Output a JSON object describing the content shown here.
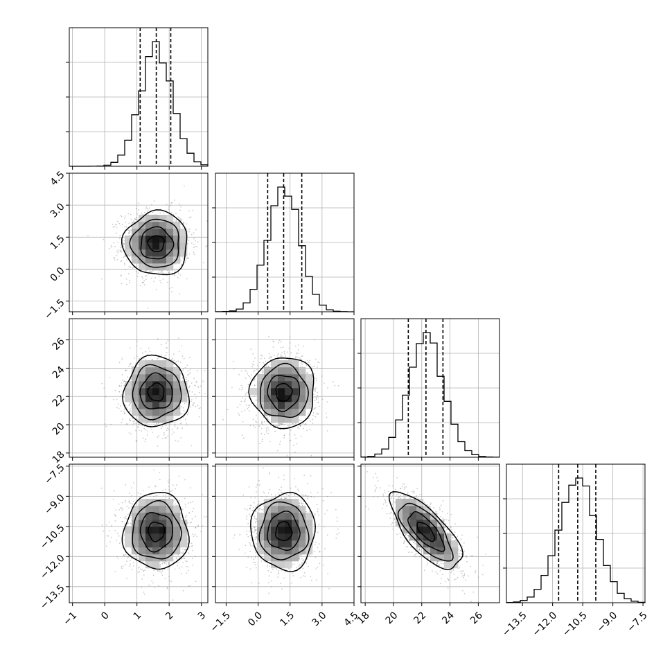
{
  "chart_data": {
    "type": "corner",
    "parameters": [
      {
        "range": [
          -1.1,
          3.2
        ],
        "ticks": [
          -1,
          0,
          1,
          2,
          3
        ],
        "tick_labels": [
          "−1",
          "0",
          "1",
          "2",
          "3"
        ],
        "mean": 1.6,
        "std": 0.5,
        "quantiles": [
          1.1,
          1.6,
          2.05
        ]
      },
      {
        "range": [
          -2.0,
          4.5
        ],
        "ticks": [
          -1.5,
          0.0,
          1.5,
          3.0,
          4.5
        ],
        "tick_labels": [
          "−1.5",
          "0.0",
          "1.5",
          "3.0",
          "4.5"
        ],
        "mean": 1.2,
        "std": 0.75,
        "quantiles": [
          0.45,
          1.2,
          2.05
        ]
      },
      {
        "range": [
          17.7,
          27.5
        ],
        "ticks": [
          18,
          20,
          22,
          24,
          26
        ],
        "tick_labels": [
          "18",
          "20",
          "22",
          "24",
          "26"
        ],
        "mean": 22.3,
        "std": 1.25,
        "quantiles": [
          21.05,
          22.3,
          23.5
        ]
      },
      {
        "range": [
          -14.3,
          -7.4
        ],
        "ticks": [
          -13.5,
          -12.0,
          -10.5,
          -9.0,
          -7.5
        ],
        "tick_labels": [
          "−13.5",
          "−12.0",
          "−10.5",
          "−9.0",
          "−7.5"
        ],
        "mean": -10.75,
        "std": 0.95,
        "quantiles": [
          -11.7,
          -10.75,
          -9.85
        ]
      }
    ],
    "correlations": {
      "0-1": 0.0,
      "0-2": 0.0,
      "0-3": 0.0,
      "1-2": 0.0,
      "1-3": 0.0,
      "2-3": -0.72
    },
    "histogram_bins": 20,
    "contour_levels": [
      0.5,
      1.0,
      1.5,
      2.0
    ],
    "grid": true,
    "colors": {
      "scatter": "#8a8a8a",
      "density_high": "#000000",
      "line": "#000000"
    }
  }
}
